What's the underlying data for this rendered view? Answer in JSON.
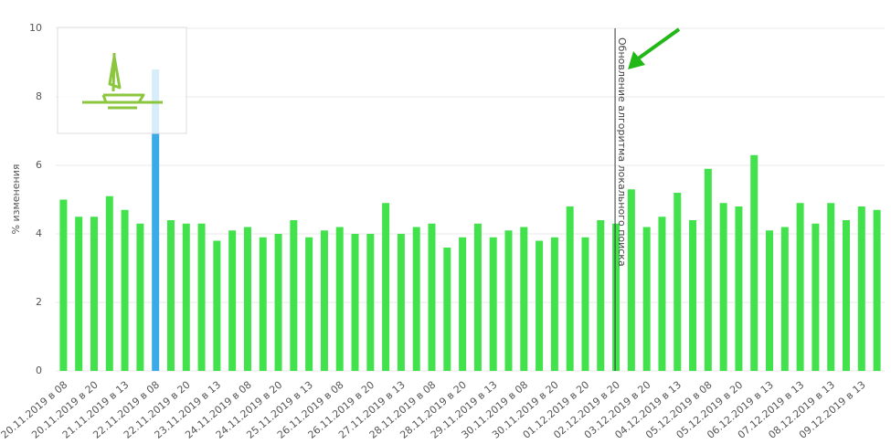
{
  "chart_data": {
    "type": "bar",
    "y_label": "% изменения",
    "categories": [
      "20.11.2019 в 08",
      null,
      "20.11.2019 в 20",
      null,
      "21.11.2019 в 13",
      null,
      "22.11.2019 в 08",
      null,
      "22.11.2019 в 20",
      null,
      "23.11.2019 в 13",
      null,
      "24.11.2019 в 08",
      null,
      "24.11.2019 в 20",
      null,
      "25.11.2019 в 13",
      null,
      "26.11.2019 в 08",
      null,
      "26.11.2019 в 20",
      null,
      "27.11.2019 в 13",
      null,
      "28.11.2019 в 08",
      null,
      "28.11.2019 в 20",
      null,
      "29.11.2019 в 13",
      null,
      "30.11.2019 в 08",
      null,
      "30.11.2019 в 20",
      null,
      "01.12.2019 в 20",
      null,
      "02.12.2019 в 20",
      null,
      "03.12.2019 в 20",
      null,
      "04.12.2019 в 13",
      null,
      "05.12.2019 в 08",
      null,
      "05.12.2019 в 20",
      null,
      "06.12.2019 в 13",
      null,
      "07.12.2019 в 13",
      null,
      "08.12.2019 в 13",
      null,
      "09.12.2019 в 13",
      null
    ],
    "values": [
      5.0,
      4.5,
      4.5,
      5.1,
      4.7,
      4.3,
      8.8,
      4.4,
      4.3,
      4.3,
      3.8,
      4.1,
      4.2,
      3.9,
      4.0,
      4.4,
      3.9,
      4.1,
      4.2,
      4.0,
      4.0,
      4.9,
      4.0,
      4.2,
      4.3,
      3.6,
      3.9,
      4.3,
      3.9,
      4.1,
      4.2,
      3.8,
      3.9,
      4.8,
      3.9,
      4.4,
      4.3,
      5.3,
      4.2,
      4.5,
      5.2,
      4.4,
      5.9,
      4.9,
      4.8,
      6.3,
      4.1,
      4.2,
      4.9,
      4.3,
      4.9,
      4.4,
      4.8,
      4.7
    ],
    "colors": [
      "#42e24c",
      "#42e24c",
      "#42e24c",
      "#42e24c",
      "#42e24c",
      "#42e24c",
      "#3aabe6",
      "#42e24c",
      "#42e24c",
      "#42e24c",
      "#42e24c",
      "#42e24c",
      "#42e24c",
      "#42e24c",
      "#42e24c",
      "#42e24c",
      "#42e24c",
      "#42e24c",
      "#42e24c",
      "#42e24c",
      "#42e24c",
      "#42e24c",
      "#42e24c",
      "#42e24c",
      "#42e24c",
      "#42e24c",
      "#42e24c",
      "#42e24c",
      "#42e24c",
      "#42e24c",
      "#42e24c",
      "#42e24c",
      "#42e24c",
      "#42e24c",
      "#42e24c",
      "#42e24c",
      "#42e24c",
      "#42e24c",
      "#42e24c",
      "#42e24c",
      "#42e24c",
      "#42e24c",
      "#42e24c",
      "#42e24c",
      "#42e24c",
      "#42e24c",
      "#42e24c",
      "#42e24c",
      "#42e24c",
      "#42e24c",
      "#42e24c",
      "#42e24c",
      "#42e24c",
      "#42e24c"
    ],
    "ylim": [
      0,
      10
    ],
    "yticks": [
      0,
      2,
      4,
      6,
      8,
      10
    ],
    "grid": true,
    "annotation": {
      "text": "Обновление алгоритма локального поиска",
      "at": 36
    }
  }
}
